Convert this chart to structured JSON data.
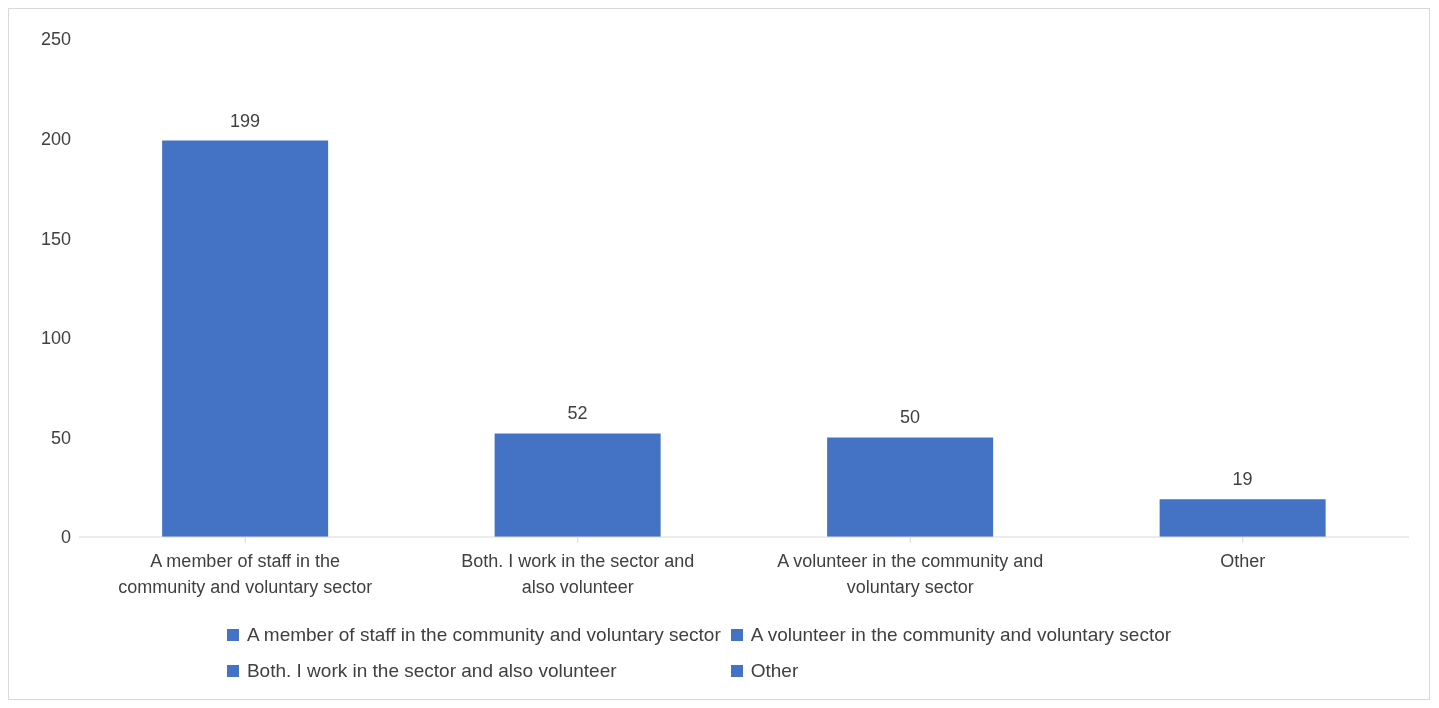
{
  "chart_data": {
    "type": "bar",
    "categories": [
      "A member of staff in the community and voluntary sector",
      "Both. I work in the sector and also volunteer",
      "A volunteer in the community and voluntary sector",
      "Other"
    ],
    "series": [
      {
        "name": "A member of staff in the community and voluntary sector",
        "color": "#4472c4",
        "values": [
          199,
          null,
          null,
          null
        ]
      },
      {
        "name": "Both. I work in the sector and also volunteer",
        "color": "#4472c4",
        "values": [
          null,
          52,
          null,
          null
        ]
      },
      {
        "name": "A volunteer in the community and voluntary sector",
        "color": "#4472c4",
        "values": [
          null,
          null,
          50,
          null
        ]
      },
      {
        "name": "Other",
        "color": "#4472c4",
        "values": [
          null,
          null,
          null,
          19
        ]
      }
    ],
    "stacked": true,
    "ylim": [
      0,
      250
    ],
    "yticks": [
      0,
      50,
      100,
      150,
      200,
      250
    ],
    "grid": false,
    "legend": "bottom",
    "data_labels": true
  }
}
